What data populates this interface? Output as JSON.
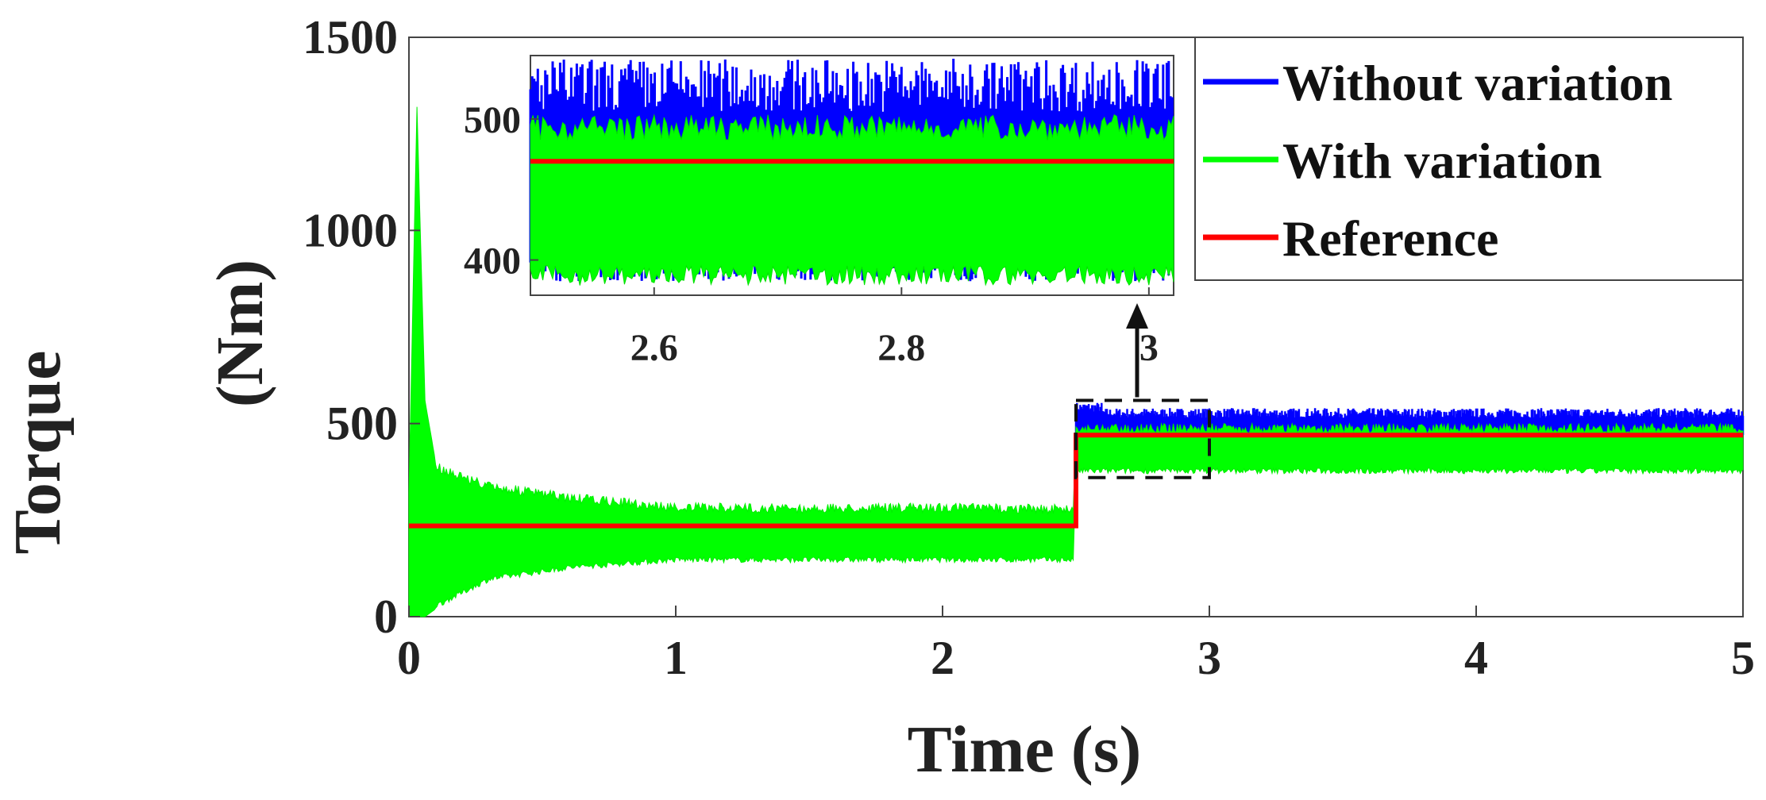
{
  "chart_data": {
    "type": "line",
    "xlabel": "Time (s)",
    "ylabel": "Torque (Nm)",
    "xlim": [
      0,
      5
    ],
    "ylim": [
      0,
      1500
    ],
    "xticks": [
      0,
      1,
      2,
      3,
      4,
      5
    ],
    "yticks": [
      0,
      500,
      1000,
      1500
    ],
    "legend_position": "top-right",
    "grid": false,
    "series": [
      {
        "name": "Without variation",
        "color": "#0000ff",
        "description_points": [
          {
            "x": 2.5,
            "y_min": 420,
            "y_max": 545
          },
          {
            "x": 3.0,
            "y_min": 420,
            "y_max": 530
          },
          {
            "x": 5.0,
            "y_min": 420,
            "y_max": 530
          }
        ]
      },
      {
        "name": "With variation",
        "color": "#00ff00",
        "envelope": [
          {
            "x": 0.0,
            "y_min": 0,
            "y_max": 320
          },
          {
            "x": 0.03,
            "y_min": 0,
            "y_max": 1320
          },
          {
            "x": 0.06,
            "y_min": 0,
            "y_max": 560
          },
          {
            "x": 0.1,
            "y_min": 20,
            "y_max": 400
          },
          {
            "x": 0.3,
            "y_min": 90,
            "y_max": 350
          },
          {
            "x": 0.6,
            "y_min": 120,
            "y_max": 320
          },
          {
            "x": 1.0,
            "y_min": 140,
            "y_max": 295
          },
          {
            "x": 1.5,
            "y_min": 140,
            "y_max": 292
          },
          {
            "x": 2.0,
            "y_min": 140,
            "y_max": 295
          },
          {
            "x": 2.49,
            "y_min": 140,
            "y_max": 290
          },
          {
            "x": 2.5,
            "y_min": 370,
            "y_max": 500
          },
          {
            "x": 3.0,
            "y_min": 370,
            "y_max": 500
          },
          {
            "x": 5.0,
            "y_min": 370,
            "y_max": 500
          }
        ]
      },
      {
        "name": "Reference",
        "color": "#ff0000",
        "x": [
          0,
          2.5,
          2.5,
          5
        ],
        "y": [
          235,
          235,
          470,
          470
        ]
      }
    ],
    "inset": {
      "xlim": [
        2.5,
        3.02
      ],
      "ylim": [
        375,
        545
      ],
      "xticks": [
        2.6,
        2.8,
        3
      ],
      "xtick_labels": [
        "2.6",
        "2.8",
        "3"
      ],
      "yticks": [
        400,
        500
      ],
      "ytick_labels": [
        "400",
        "500"
      ],
      "reference_value": 470,
      "zoom_box": {
        "x": [
          2.5,
          3.0
        ],
        "y": [
          360,
          560
        ]
      }
    }
  },
  "labels": {
    "xlabel": "Time (s)",
    "ylabel_line1": "Torque",
    "ylabel_line2": "(Nm)",
    "legend": [
      "Without variation",
      "With variation",
      "Reference"
    ],
    "xticks": [
      "0",
      "1",
      "2",
      "3",
      "4",
      "5"
    ],
    "yticks": [
      "0",
      "500",
      "1000",
      "1500"
    ],
    "inset_xticks": [
      "2.6",
      "2.8",
      "3"
    ],
    "inset_yticks": [
      "400",
      "500"
    ]
  }
}
